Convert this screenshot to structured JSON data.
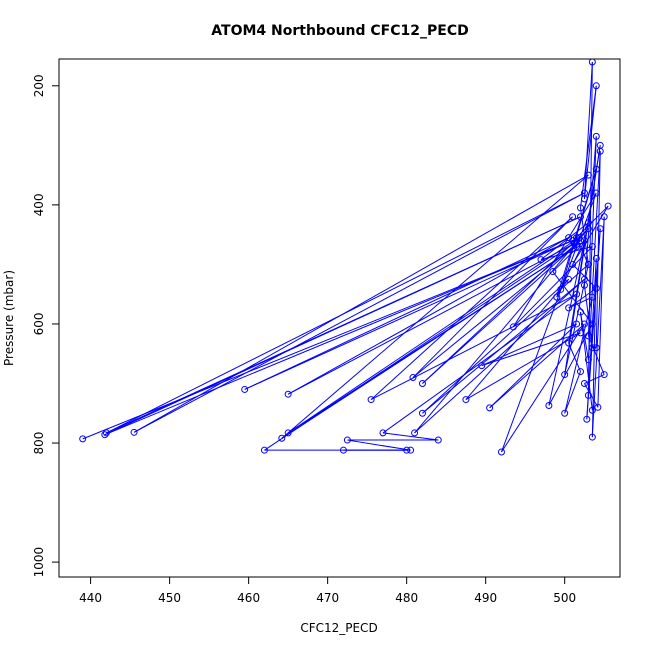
{
  "chart_data": {
    "type": "scatter",
    "title": "ATOM4 Northbound CFC12_PECD",
    "xlabel": "CFC12_PECD",
    "ylabel": "Pressure (mbar)",
    "xlim": [
      436,
      507
    ],
    "ylim": [
      1025,
      155
    ],
    "y_reversed": true,
    "grid": false,
    "legend": "none",
    "x_ticks": [
      440,
      450,
      460,
      470,
      480,
      490,
      500
    ],
    "y_ticks": [
      200,
      400,
      600,
      800,
      1000
    ],
    "series": [
      {
        "color": "#0000ff",
        "marker": "open-circle",
        "connected": true,
        "points": [
          [
            439.0,
            793
          ],
          [
            501.0,
            460
          ],
          [
            441.8,
            786
          ],
          [
            502.0,
            420
          ],
          [
            442.0,
            783
          ],
          [
            502.5,
            380
          ],
          [
            445.5,
            782
          ],
          [
            503.0,
            350
          ],
          [
            464.2,
            792
          ],
          [
            501.5,
            470
          ],
          [
            465.0,
            783
          ],
          [
            501.8,
            455
          ],
          [
            459.5,
            710
          ],
          [
            500.5,
            455
          ],
          [
            465.0,
            718
          ],
          [
            501.2,
            465
          ],
          [
            462.0,
            812
          ],
          [
            480.0,
            812
          ],
          [
            472.0,
            812
          ],
          [
            480.5,
            812
          ],
          [
            472.5,
            795
          ],
          [
            484.0,
            795
          ],
          [
            477.0,
            783
          ],
          [
            501.5,
            550
          ],
          [
            475.5,
            727
          ],
          [
            501.0,
            420
          ],
          [
            480.8,
            690
          ],
          [
            502.0,
            460
          ],
          [
            482.0,
            700
          ],
          [
            503.0,
            440
          ],
          [
            481.0,
            783
          ],
          [
            502.5,
            525
          ],
          [
            482.0,
            750
          ],
          [
            500.5,
            525
          ],
          [
            487.5,
            727
          ],
          [
            502.0,
            615
          ],
          [
            489.5,
            670
          ],
          [
            501.5,
            600
          ],
          [
            490.5,
            741
          ],
          [
            502.5,
            600
          ],
          [
            492.0,
            815
          ],
          [
            504.0,
            380
          ],
          [
            493.5,
            605
          ],
          [
            503.5,
            470
          ],
          [
            497.0,
            492
          ],
          [
            503.0,
            430
          ],
          [
            498.0,
            737
          ],
          [
            503.5,
            600
          ],
          [
            498.5,
            512
          ],
          [
            502.5,
            460
          ],
          [
            499.0,
            555
          ],
          [
            504.0,
            340
          ],
          [
            499.5,
            542
          ],
          [
            503.0,
            500
          ],
          [
            500.0,
            685
          ],
          [
            504.5,
            300
          ],
          [
            500.5,
            632
          ],
          [
            502.0,
            680
          ],
          [
            500.0,
            750
          ],
          [
            503.5,
            555
          ],
          [
            500.5,
            573
          ],
          [
            504.0,
            540
          ],
          [
            501.0,
            500
          ],
          [
            505.5,
            402
          ],
          [
            501.5,
            455
          ],
          [
            503.0,
            500
          ],
          [
            502.0,
            405
          ],
          [
            504.0,
            200
          ],
          [
            502.5,
            390
          ],
          [
            503.5,
            160
          ],
          [
            503.0,
            720
          ],
          [
            504.5,
            440
          ],
          [
            502.8,
            760
          ],
          [
            504.0,
            490
          ],
          [
            503.5,
            790
          ],
          [
            505.0,
            420
          ],
          [
            504.2,
            740
          ],
          [
            502.5,
            700
          ],
          [
            505.0,
            685
          ],
          [
            503.0,
            620
          ],
          [
            504.0,
            285
          ],
          [
            502.5,
            535
          ],
          [
            503.5,
            640
          ],
          [
            504.0,
            640
          ],
          [
            504.5,
            310
          ],
          [
            503.0,
            660
          ],
          [
            502.0,
            580
          ],
          [
            503.5,
            745
          ]
        ]
      }
    ]
  }
}
